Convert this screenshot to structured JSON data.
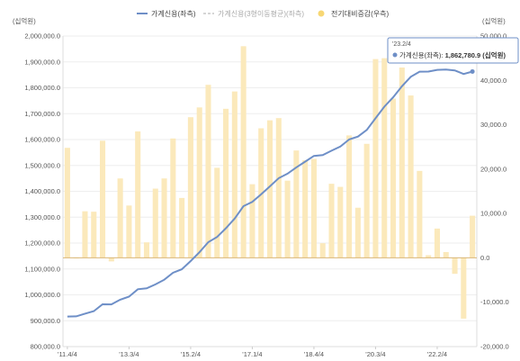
{
  "chart_data": {
    "type": "bar+line",
    "legend": {
      "position": "top",
      "items": [
        {
          "label": "가계신용(좌측)",
          "color": "#6e8fc7",
          "style": "line"
        },
        {
          "label": "가계신용(3형이동평균)(좌측)",
          "color": "#c8c8c8",
          "style": "dashed",
          "muted": true
        },
        {
          "label": "전기대비증감(우측)",
          "color": "#f7d774",
          "style": "dot"
        }
      ]
    },
    "left_axis": {
      "unit": "(십억원)",
      "min": 800000,
      "max": 2000000,
      "step": 100000,
      "ticks": [
        "800,000.0",
        "900,000.0",
        "1,000,000.0",
        "1,100,000.0",
        "1,200,000.0",
        "1,300,000.0",
        "1,400,000.0",
        "1,500,000.0",
        "1,600,000.0",
        "1,700,000.0",
        "1,800,000.0",
        "1,900,000.0",
        "2,000,000.0"
      ]
    },
    "right_axis": {
      "unit": "(십억원)",
      "min": -20000,
      "max": 50000,
      "step": 10000,
      "ticks": [
        "-20,000.0",
        "-10,000.0",
        "0.0",
        "10,000.0",
        "20,000.0",
        "30,000.0",
        "40,000.0",
        "50,000.0"
      ]
    },
    "x_tick_labels": [
      {
        "index": 0,
        "label": "'11.4/4"
      },
      {
        "index": 7,
        "label": "'13.3/4"
      },
      {
        "index": 14,
        "label": "'15.2/4"
      },
      {
        "index": 21,
        "label": "'17.1/4"
      },
      {
        "index": 28,
        "label": "'18.4/4"
      },
      {
        "index": 35,
        "label": "'20.3/4"
      },
      {
        "index": 42,
        "label": "'22.2/4"
      }
    ],
    "grid": true,
    "series": [
      {
        "name": "가계신용(좌측)",
        "type": "line",
        "axis": "left",
        "values": [
          916162,
          916900,
          927400,
          937000,
          963400,
          963200,
          981100,
          992900,
          1021400,
          1024900,
          1040500,
          1058400,
          1085300,
          1098800,
          1130500,
          1164400,
          1203400,
          1223700,
          1257300,
          1294800,
          1342500,
          1359100,
          1388300,
          1419300,
          1450800,
          1468200,
          1492400,
          1514400,
          1536700,
          1540000,
          1556700,
          1572700,
          1600300,
          1611600,
          1637300,
          1682100,
          1727100,
          1763000,
          1805900,
          1842500,
          1862100,
          1862700,
          1869300,
          1870600,
          1867000,
          1853300,
          1862781
        ]
      },
      {
        "name": "전기대비증감(우측)",
        "type": "bar",
        "axis": "right",
        "values": [
          24800,
          0,
          10500,
          10400,
          26400,
          -800,
          17900,
          11800,
          28500,
          3500,
          15600,
          17900,
          26900,
          13500,
          31700,
          33900,
          39000,
          20300,
          33600,
          37500,
          47700,
          16600,
          29200,
          31000,
          31500,
          17400,
          24200,
          22000,
          22300,
          3300,
          16700,
          16000,
          27600,
          11300,
          25700,
          44800,
          45000,
          35900,
          42900,
          36600,
          19600,
          600,
          6600,
          1300,
          -3600,
          -13700,
          9500
        ]
      }
    ],
    "tooltip": {
      "date": "'23.2/4",
      "series_label": "가계신용(좌측)",
      "value_text": "1,862,780.9 (십억원)",
      "point_index": 46
    }
  }
}
